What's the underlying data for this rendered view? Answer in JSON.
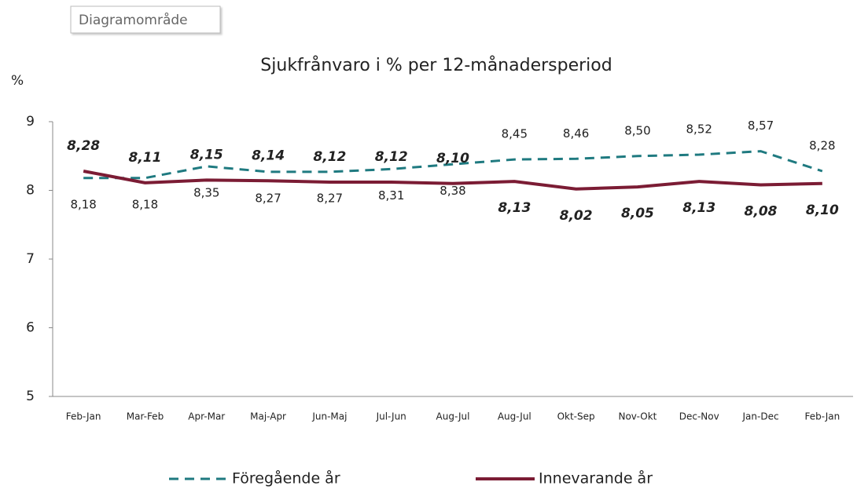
{
  "tooltip": "Diagramområde",
  "chart_data": {
    "type": "line",
    "title": "Sjukfrånvaro i % per 12-månadersperiod",
    "y_label": "%",
    "categories": [
      "Feb-Jan",
      "Mar-Feb",
      "Apr-Mar",
      "Maj-Apr",
      "Jun-Maj",
      "Jul-Jun",
      "Aug-Jul",
      "Aug-Jul",
      "Okt-Sep",
      "Nov-Okt",
      "Dec-Nov",
      "Jan-Dec",
      "Feb-Jan"
    ],
    "series": [
      {
        "name": "Föregående år",
        "color": "#1f7a80",
        "dash": true,
        "values": [
          8.18,
          8.18,
          8.35,
          8.27,
          8.27,
          8.31,
          8.38,
          8.45,
          8.46,
          8.5,
          8.52,
          8.57,
          8.28
        ],
        "value_labels": [
          "8,18",
          "8,18",
          "8,35",
          "8,27",
          "8,27",
          "8,31",
          "8,38",
          "8,45",
          "8,46",
          "8,50",
          "8,52",
          "8,57",
          "8,28"
        ]
      },
      {
        "name": "Innevarande år",
        "color": "#7b1c34",
        "dash": false,
        "values": [
          8.28,
          8.11,
          8.15,
          8.14,
          8.12,
          8.12,
          8.1,
          8.13,
          8.02,
          8.05,
          8.13,
          8.08,
          8.1
        ],
        "value_labels": [
          "8,28",
          "8,11",
          "8,15",
          "8,14",
          "8,12",
          "8,12",
          "8,10",
          "8,13",
          "8,02",
          "8,05",
          "8,13",
          "8,08",
          "8,10"
        ]
      }
    ],
    "ylim": [
      5,
      9
    ],
    "yticks": [
      5,
      6,
      7,
      8,
      9
    ],
    "grid": false,
    "legend": "bottom"
  }
}
